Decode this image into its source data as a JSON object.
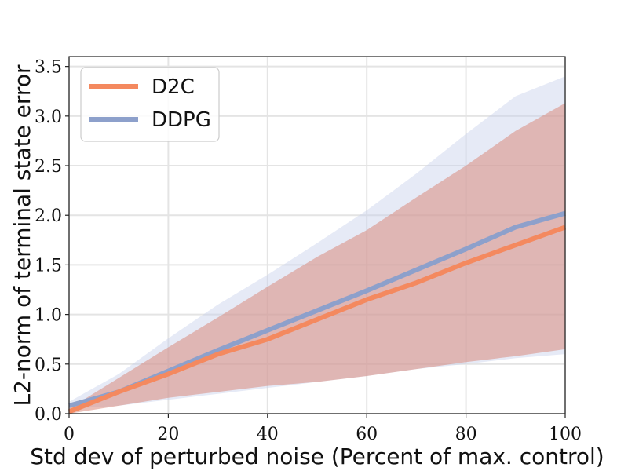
{
  "chart_data": {
    "type": "line",
    "xlabel": "Std dev of perturbed noise (Percent of max. control)",
    "ylabel": "L2-norm of terminal state error",
    "xlim": [
      0,
      100
    ],
    "ylim": [
      0,
      3.6
    ],
    "xticks": [
      0,
      20,
      40,
      60,
      80,
      100
    ],
    "yticks": [
      0.0,
      0.5,
      1.0,
      1.5,
      2.0,
      2.5,
      3.0,
      3.5
    ],
    "xtick_labels": [
      "0",
      "20",
      "40",
      "60",
      "80",
      "100"
    ],
    "ytick_labels": [
      "0.0",
      "0.5",
      "1.0",
      "1.5",
      "2.0",
      "2.5",
      "3.0",
      "3.5"
    ],
    "grid": true,
    "legend_position": "top-left",
    "x": [
      0,
      10,
      20,
      30,
      40,
      50,
      60,
      70,
      80,
      90,
      100
    ],
    "series": [
      {
        "name": "D2C",
        "color": "#f4895f",
        "band_color": "#d98a7e",
        "values": [
          0.02,
          0.22,
          0.4,
          0.6,
          0.75,
          0.95,
          1.15,
          1.32,
          1.52,
          1.7,
          1.88
        ],
        "lower": [
          0.0,
          0.08,
          0.16,
          0.22,
          0.28,
          0.32,
          0.38,
          0.45,
          0.52,
          0.58,
          0.65
        ],
        "upper": [
          0.05,
          0.36,
          0.67,
          0.97,
          1.28,
          1.58,
          1.85,
          2.18,
          2.5,
          2.85,
          3.13
        ]
      },
      {
        "name": "DDPG",
        "color": "#8da0cb",
        "band_color": "#c7d1ea",
        "values": [
          0.08,
          0.22,
          0.43,
          0.64,
          0.84,
          1.04,
          1.24,
          1.45,
          1.66,
          1.88,
          2.02
        ],
        "lower": [
          0.05,
          0.08,
          0.14,
          0.2,
          0.26,
          0.32,
          0.38,
          0.45,
          0.5,
          0.56,
          0.6
        ],
        "upper": [
          0.12,
          0.4,
          0.76,
          1.1,
          1.4,
          1.72,
          2.05,
          2.42,
          2.82,
          3.2,
          3.4
        ]
      }
    ]
  }
}
